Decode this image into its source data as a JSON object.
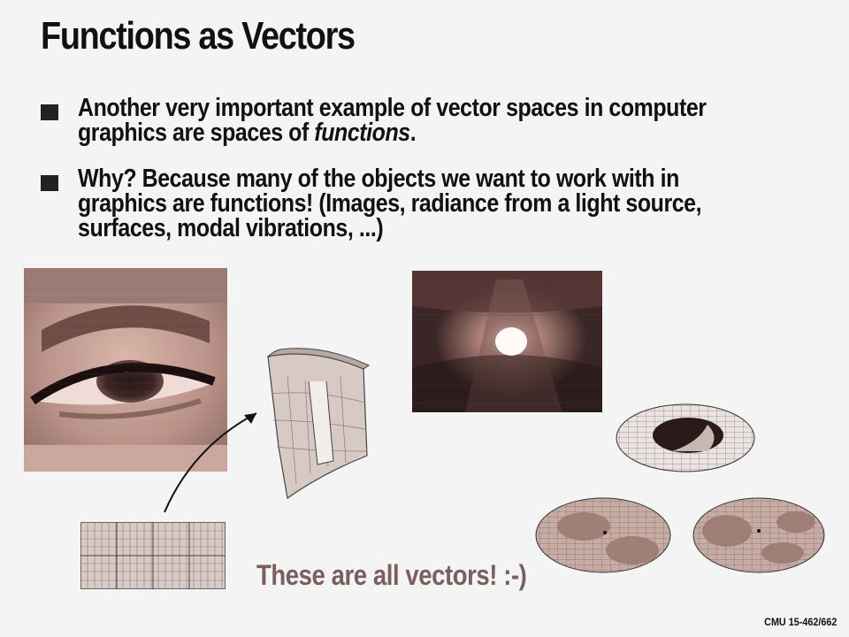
{
  "slide": {
    "title": "Functions as Vectors",
    "bullets": [
      {
        "line1": "Another very important example of vector spaces in computer",
        "line2_pre": "graphics are spaces of ",
        "line2_em": "functions",
        "line2_post": "."
      },
      {
        "line1": "Why?  Because many of the objects we want to work with in",
        "line2": "graphics are functions!  (Images, radiance from a light source,",
        "line3": "surfaces, modal vibrations, ...)"
      }
    ],
    "caption": "These are all vectors! :-)",
    "footer": "CMU 15-462/662"
  },
  "figures": {
    "image_icon": "pixelated-eye-image",
    "surface_icon": "parametric-surface-patch",
    "grid_icon": "parameter-domain-grid",
    "radiance_icon": "spotlight-radiance-image",
    "modes_icon": "modal-vibration-disks"
  }
}
